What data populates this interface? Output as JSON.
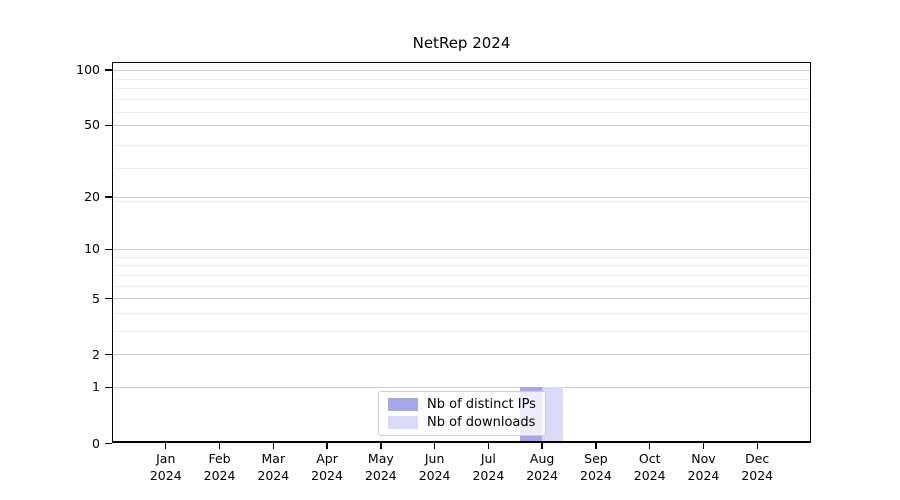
{
  "chart_data": {
    "type": "bar",
    "title": "NetRep 2024",
    "categories": [
      "Jan",
      "Feb",
      "Mar",
      "Apr",
      "May",
      "Jun",
      "Jul",
      "Aug",
      "Sep",
      "Oct",
      "Nov",
      "Dec"
    ],
    "category_year": "2024",
    "series": [
      {
        "name": "Nb of distinct IPs",
        "color": "#a7a7e6",
        "values": [
          0,
          0,
          0,
          0,
          0,
          0,
          0,
          1,
          0,
          0,
          0,
          0
        ]
      },
      {
        "name": "Nb of downloads",
        "color": "#dadaf6",
        "values": [
          0,
          0,
          0,
          0,
          0,
          0,
          0,
          1,
          0,
          0,
          0,
          0
        ]
      }
    ],
    "y_axis": {
      "scale": "log(1+x)",
      "major_ticks": [
        0,
        1,
        2,
        5,
        10,
        20,
        50,
        100
      ],
      "minor_gridlines": [
        3,
        4,
        6,
        7,
        8,
        9,
        19,
        29,
        39,
        59,
        69,
        79,
        89
      ],
      "range": [
        0,
        110
      ]
    },
    "x_axis": {
      "tick_count": 12
    },
    "legend": {
      "position": "lower center"
    },
    "grid": true,
    "colors": {
      "major_grid": "#cacaca",
      "minor_grid": "#ededed",
      "axis": "#000000",
      "background": "#ffffff"
    }
  }
}
